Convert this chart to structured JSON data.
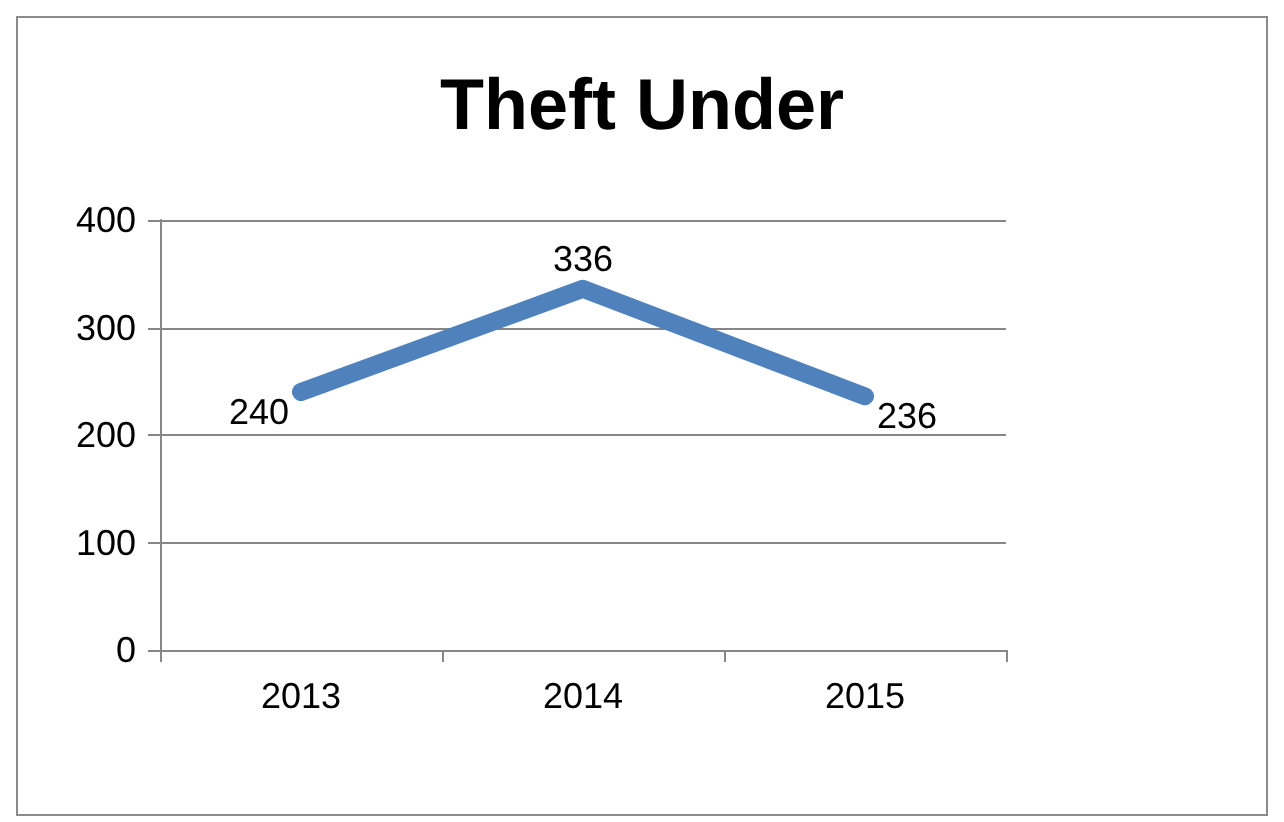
{
  "chart_data": {
    "type": "line",
    "title": "Theft Under",
    "categories": [
      "2013",
      "2014",
      "2015"
    ],
    "series": [
      {
        "color": "#4f81bd",
        "values": [
          240,
          336,
          236
        ]
      }
    ],
    "ylim": [
      0,
      400
    ],
    "yticks": [
      0,
      100,
      200,
      300,
      400
    ],
    "grid": "y",
    "data_labels": true,
    "marker": "none"
  }
}
